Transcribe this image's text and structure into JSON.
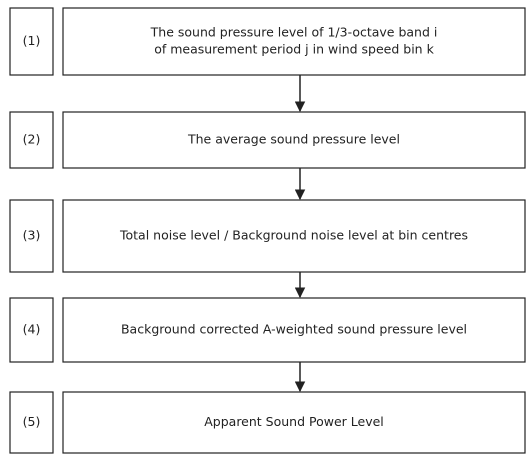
{
  "steps": [
    {
      "number": "(1)",
      "lines": [
        "The sound pressure level of 1/3-octave band i",
        "of measurement period j in wind speed bin k"
      ]
    },
    {
      "number": "(2)",
      "lines": [
        "The average sound pressure level"
      ]
    },
    {
      "number": "(3)",
      "lines": [
        "Total noise level / Background noise level at bin centres"
      ]
    },
    {
      "number": "(4)",
      "lines": [
        "Background corrected A-weighted sound pressure level"
      ]
    },
    {
      "number": "(5)",
      "lines": [
        "Apparent Sound Power Level"
      ]
    }
  ]
}
